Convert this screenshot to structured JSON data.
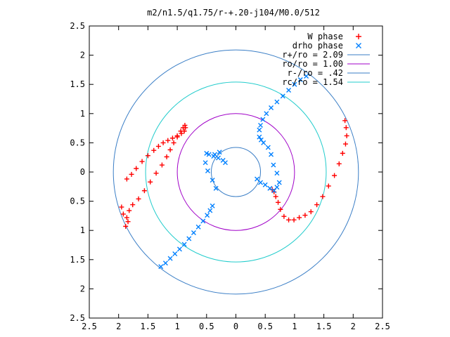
{
  "chart_data": {
    "type": "scatter",
    "title": "m2/n1.5/q1.75/r-+.20-j104/M0.0/512",
    "xlim": [
      -2.5,
      2.5
    ],
    "ylim": [
      -2.5,
      2.5
    ],
    "x_tick_values": [
      -2.5,
      -2,
      -1.5,
      -1,
      -0.5,
      0,
      0.5,
      1,
      1.5,
      2,
      2.5
    ],
    "x_tick_labels": [
      "2.5",
      "2",
      "1.5",
      "1",
      "0.5",
      "0",
      "0.5",
      "1",
      "1.5",
      "2",
      "2.5"
    ],
    "y_tick_values": [
      2.5,
      2,
      1.5,
      1,
      0.5,
      0,
      -0.5,
      -1,
      -1.5,
      -2,
      -2.5
    ],
    "y_tick_labels": [
      "2.5",
      "2",
      "1.5",
      "1",
      "0.5",
      "0",
      "0.5",
      "1",
      "1.5",
      "2",
      "2.5"
    ],
    "legend_position": "top-right",
    "legend": [
      {
        "label": "W phase",
        "marker": "plus",
        "color": "#ff0000"
      },
      {
        "label": "drho phase",
        "marker": "cross",
        "color": "#0080ff"
      },
      {
        "label": "r+/ro = 2.09",
        "marker": "line",
        "color": "#3a7ec6"
      },
      {
        "label": "ro/ro = 1.00",
        "marker": "line",
        "color": "#a000c8"
      },
      {
        "label": "r-/ro = .42",
        "marker": "line",
        "color": "#3a7ec6"
      },
      {
        "label": "rc/ro = 1.54",
        "marker": "line",
        "color": "#22cccc"
      }
    ],
    "circles": [
      {
        "r": 2.09,
        "color": "#3a7ec6"
      },
      {
        "r": 1.0,
        "color": "#a000c8"
      },
      {
        "r": 0.42,
        "color": "#3a7ec6"
      },
      {
        "r": 1.54,
        "color": "#22cccc"
      }
    ],
    "series": [
      {
        "name": "W phase",
        "color": "#ff0000",
        "marker": "plus",
        "x": [
          -1.88,
          -1.84,
          -1.86,
          -1.82,
          -1.76,
          -1.66,
          -1.56,
          -1.46,
          -1.36,
          -1.26,
          -1.18,
          -1.12,
          -1.06,
          -1.0,
          -0.94,
          -0.9,
          -0.87,
          -0.86,
          -0.88,
          -0.93,
          -1.0,
          -1.08,
          -1.16,
          -1.24,
          -1.32,
          -1.4,
          -1.5,
          -1.6,
          -1.7,
          -1.78,
          -1.86,
          -1.95,
          -1.92,
          0.62,
          0.65,
          0.68,
          0.72,
          0.76,
          0.82,
          0.9,
          0.99,
          1.08,
          1.18,
          1.28,
          1.38,
          1.48,
          1.58,
          1.68,
          1.76,
          1.82,
          1.87,
          1.89,
          1.88,
          1.86
        ],
        "y": [
          -0.93,
          -0.85,
          -0.78,
          -0.66,
          -0.56,
          -0.46,
          -0.32,
          -0.17,
          -0.02,
          0.12,
          0.26,
          0.38,
          0.5,
          0.6,
          0.7,
          0.76,
          0.8,
          0.76,
          0.7,
          0.66,
          0.62,
          0.58,
          0.54,
          0.5,
          0.44,
          0.37,
          0.28,
          0.18,
          0.06,
          -0.04,
          -0.12,
          -0.6,
          -0.72,
          -0.3,
          -0.34,
          -0.42,
          -0.52,
          -0.64,
          -0.76,
          -0.82,
          -0.82,
          -0.78,
          -0.74,
          -0.68,
          -0.56,
          -0.42,
          -0.24,
          -0.06,
          0.14,
          0.32,
          0.48,
          0.62,
          0.76,
          0.88
        ]
      },
      {
        "name": "drho phase",
        "color": "#0080ff",
        "marker": "cross",
        "x": [
          -1.28,
          -1.2,
          -1.12,
          -1.04,
          -0.96,
          -0.88,
          -0.8,
          -0.72,
          -0.64,
          -0.56,
          -0.49,
          -0.44,
          -0.4,
          -0.5,
          -0.46,
          -0.38,
          -0.3,
          -0.22,
          -0.18,
          -0.28,
          -0.36,
          -0.52,
          -0.48,
          -0.4,
          -0.34,
          0.4,
          0.42,
          0.46,
          0.52,
          0.6,
          0.7,
          0.8,
          0.9,
          1.0,
          1.1,
          1.2,
          0.4,
          0.43,
          0.47,
          0.55,
          0.6,
          0.64,
          0.7,
          0.74,
          0.7,
          0.65,
          0.58,
          0.5,
          0.42,
          0.36
        ],
        "y": [
          -1.62,
          -1.56,
          -1.48,
          -1.4,
          -1.32,
          -1.24,
          -1.14,
          -1.04,
          -0.94,
          -0.84,
          -0.74,
          -0.66,
          -0.58,
          0.32,
          0.3,
          0.27,
          0.24,
          0.2,
          0.16,
          0.34,
          0.3,
          0.16,
          0.02,
          -0.14,
          -0.28,
          0.72,
          0.8,
          0.9,
          1.0,
          1.1,
          1.2,
          1.3,
          1.4,
          1.5,
          1.58,
          1.64,
          0.6,
          0.55,
          0.5,
          0.42,
          0.3,
          0.12,
          -0.02,
          -0.18,
          -0.26,
          -0.32,
          -0.28,
          -0.22,
          -0.18,
          -0.12
        ]
      }
    ]
  }
}
